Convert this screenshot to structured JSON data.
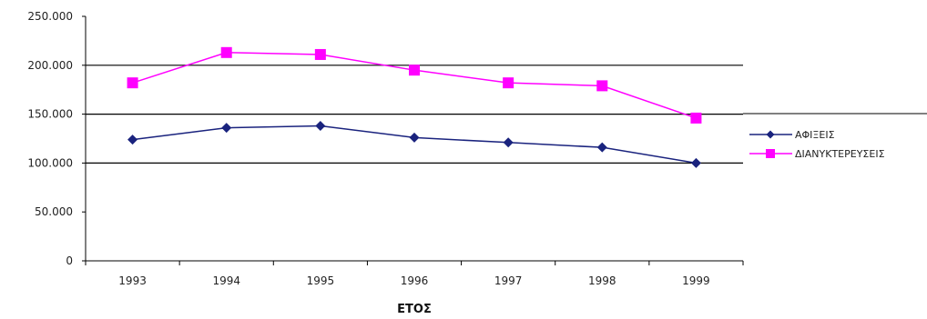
{
  "chart_data": {
    "type": "line",
    "title": "",
    "xlabel": "ΕΤΟΣ",
    "ylabel": "",
    "categories": [
      "1993",
      "1994",
      "1995",
      "1996",
      "1997",
      "1998",
      "1999"
    ],
    "ylim": [
      0,
      250000
    ],
    "yticks": [
      0,
      50000,
      100000,
      150000,
      200000,
      250000
    ],
    "ytick_labels": [
      "0",
      "50.000",
      "100.000",
      "150.000",
      "200.000",
      "250.000"
    ],
    "grid": "horizontal major gridlines at 100.000, 150.000, 200.000",
    "legend_position": "right",
    "series": [
      {
        "name": "ΑΦΙΞΕΙΣ",
        "color": "#1a237e",
        "marker": "diamond",
        "values": [
          124000,
          136000,
          138000,
          126000,
          121000,
          116000,
          100000
        ]
      },
      {
        "name": "ΔΙΑΝΥΚΤΕΡΕΥΣΕΙΣ",
        "color": "#ff00ff",
        "marker": "square",
        "values": [
          182000,
          213000,
          211000,
          195000,
          182000,
          179000,
          146000
        ]
      }
    ]
  }
}
